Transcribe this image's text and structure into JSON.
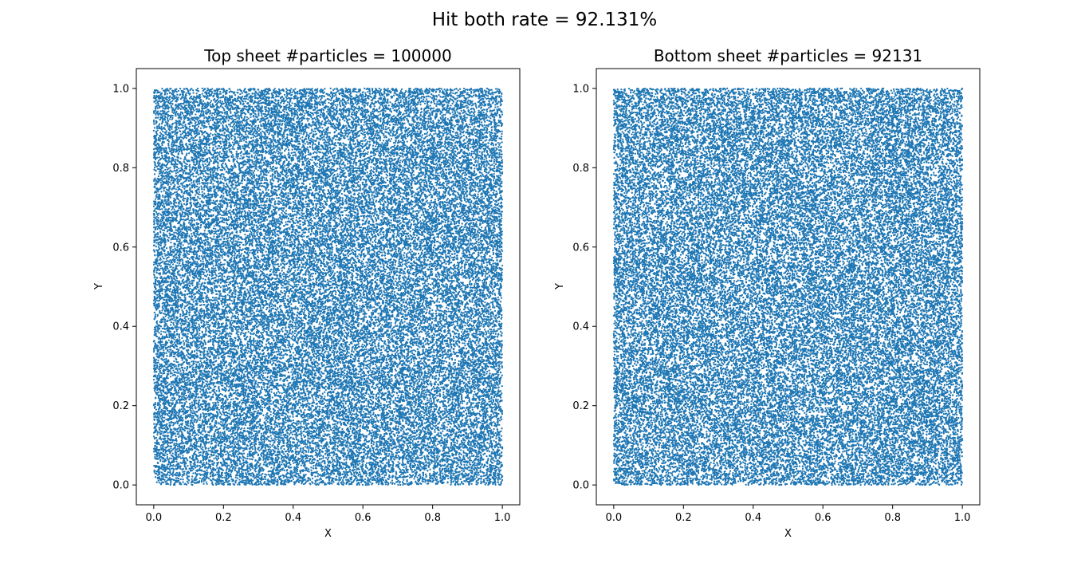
{
  "figure": {
    "suptitle": "Hit both rate = 92.131%"
  },
  "chart_data": [
    {
      "type": "scatter",
      "title": "Top sheet #particles = 100000",
      "xlabel": "X",
      "ylabel": "Y",
      "xlim": [
        -0.05,
        1.05
      ],
      "ylim": [
        -0.05,
        1.05
      ],
      "xticks": [
        "0.0",
        "0.2",
        "0.4",
        "0.6",
        "0.8",
        "1.0"
      ],
      "yticks": [
        "0.0",
        "0.2",
        "0.4",
        "0.6",
        "0.8",
        "1.0"
      ],
      "distribution": "uniform",
      "x_range": [
        0.0,
        1.0
      ],
      "y_range": [
        0.0,
        1.0
      ],
      "point_count": 100000,
      "color": "#1f77b4",
      "grid": false
    },
    {
      "type": "scatter",
      "title": "Bottom sheet #particles = 92131",
      "xlabel": "X",
      "ylabel": "Y",
      "xlim": [
        -0.05,
        1.05
      ],
      "ylim": [
        -0.05,
        1.05
      ],
      "xticks": [
        "0.0",
        "0.2",
        "0.4",
        "0.6",
        "0.8",
        "1.0"
      ],
      "yticks": [
        "0.0",
        "0.2",
        "0.4",
        "0.6",
        "0.8",
        "1.0"
      ],
      "distribution": "uniform",
      "x_range": [
        0.0,
        1.0
      ],
      "y_range": [
        0.0,
        1.0
      ],
      "point_count": 92131,
      "color": "#1f77b4",
      "grid": false
    }
  ]
}
